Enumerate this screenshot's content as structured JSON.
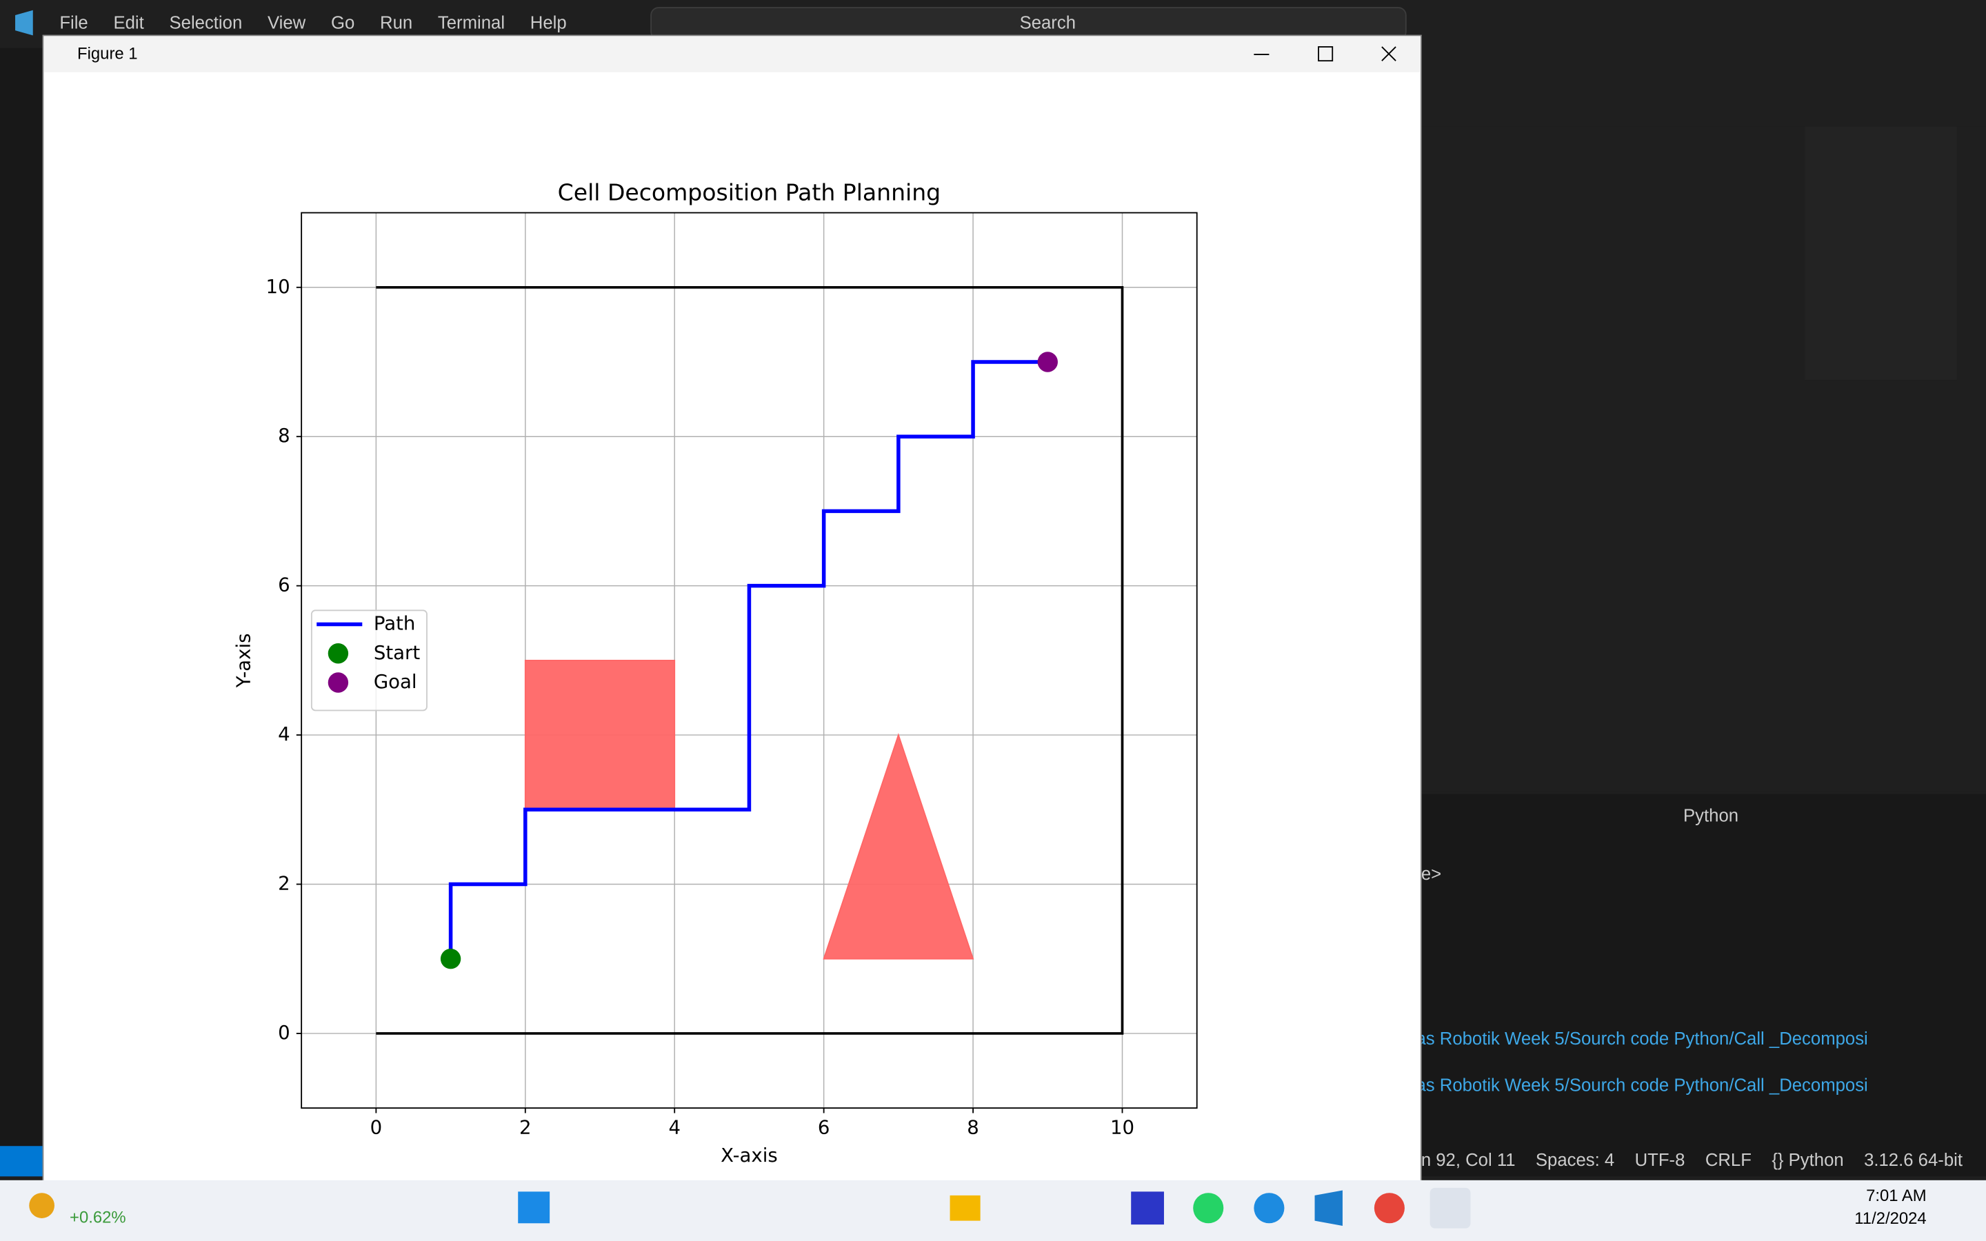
{
  "menu": [
    "File",
    "Edit",
    "Selection",
    "View",
    "Go",
    "Run",
    "Terminal",
    "Help"
  ],
  "search": "Search",
  "window_title": "Figure 1",
  "terminal": {
    "tab": "Python",
    "lines": [
      "e>",
      "as Robotik Week 5/Sourch code Python/Call _Decomposi",
      "as Robotik Week 5/Sourch code Python/Call _Decomposi"
    ]
  },
  "status_bar": [
    "n 92, Col 11",
    "Spaces: 4",
    "UTF-8",
    "CRLF",
    "{} Python",
    "3.12.6 64-bit"
  ],
  "taskbar": {
    "stock": "+0.62%",
    "time": "7:01 AM",
    "date": "11/2/2024"
  },
  "chart_data": {
    "type": "line",
    "title": "Cell Decomposition Path Planning",
    "x_label": "X-axis",
    "y_label": "Y-axis",
    "xlim": [
      -1,
      11
    ],
    "ylim": [
      -1,
      11
    ],
    "xticks": [
      0,
      2,
      4,
      6,
      8,
      10
    ],
    "yticks": [
      0,
      2,
      4,
      6,
      8,
      10
    ],
    "grid": true,
    "legend": "center left",
    "series": [
      {
        "name": "Path",
        "type": "line",
        "color": "#0000ff",
        "x": [
          1,
          1,
          2,
          2,
          5,
          5,
          6,
          6,
          7,
          7,
          8,
          8,
          9
        ],
        "values": [
          1,
          2,
          2,
          3,
          3,
          6,
          6,
          7,
          7,
          8,
          8,
          9,
          9
        ]
      },
      {
        "name": "Start",
        "type": "scatter",
        "color": "#008000",
        "x": [
          1
        ],
        "values": [
          1
        ]
      },
      {
        "name": "Goal",
        "type": "scatter",
        "color": "#800080",
        "x": [
          9
        ],
        "values": [
          9
        ]
      },
      {
        "type": "line",
        "color": "#000000",
        "x": [
          0,
          10,
          10,
          0
        ],
        "values": [
          10,
          10,
          0,
          0
        ]
      },
      {
        "type": "fill",
        "color": "#ff6666",
        "x": [
          2,
          4,
          4,
          2
        ],
        "values": [
          3,
          3,
          5,
          5
        ]
      },
      {
        "type": "fill",
        "color": "#ff6666",
        "x": [
          6,
          8,
          7
        ],
        "values": [
          1,
          1,
          4
        ]
      }
    ]
  }
}
